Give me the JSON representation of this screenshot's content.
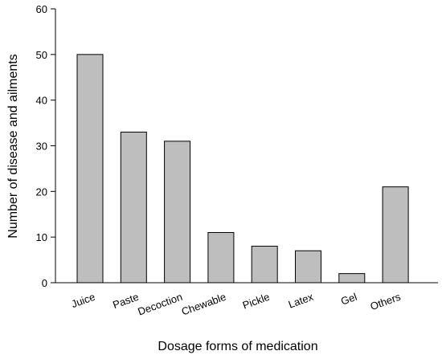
{
  "chart_data": {
    "type": "bar",
    "categories": [
      "Juice",
      "Paste",
      "Decoction",
      "Chewable",
      "Pickle",
      "Latex",
      "Gel",
      "Others"
    ],
    "values": [
      50,
      33,
      31,
      11,
      8,
      7,
      2,
      21
    ],
    "xlabel": "Dosage forms of medication",
    "ylabel": "Number of disease and ailments",
    "ylim": [
      0,
      60
    ],
    "yticks": [
      0,
      10,
      20,
      30,
      40,
      50,
      60
    ],
    "grid": false,
    "bar_color": "#bebebe",
    "bar_edge_color": "#000000"
  }
}
